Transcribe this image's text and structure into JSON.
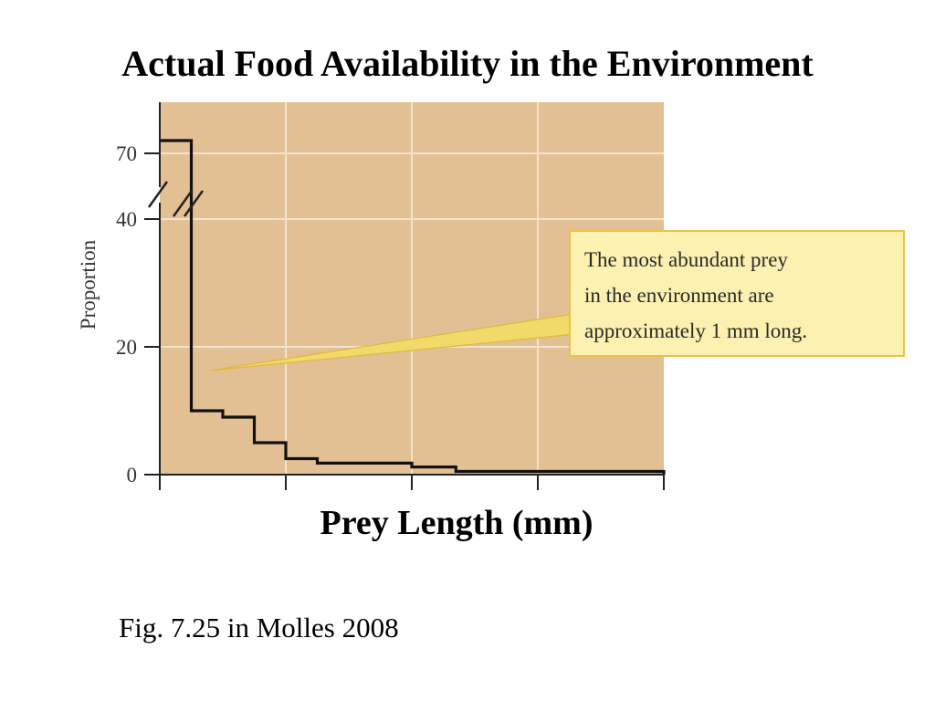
{
  "slide": {
    "title": "Actual Food Availability in the Environment",
    "caption": "Fig. 7.25 in Molles 2008"
  },
  "chart_data": {
    "type": "line",
    "title": "",
    "xlabel": "Prey Length (mm)",
    "ylabel": "Proportion",
    "y_ticks": [
      {
        "value": 0,
        "label": "0"
      },
      {
        "value": 20,
        "label": "20"
      },
      {
        "value": 40,
        "label": "40"
      },
      {
        "value": 70,
        "label": "70"
      }
    ],
    "y_axis_break": "between 40 and 70",
    "xlim": [
      0,
      4
    ],
    "x_ticks_labeled": false,
    "grid": true,
    "series": [
      {
        "style": "step",
        "x": [
          0,
          0.25,
          0.5,
          0.75,
          1.0,
          1.25,
          2.0,
          2.35,
          4.0
        ],
        "y": [
          72,
          10,
          9,
          5,
          2.5,
          1.8,
          1.2,
          0.5,
          0
        ]
      }
    ],
    "annotation": {
      "lines": [
        "The most abundant prey",
        "in the environment are",
        "approximately 1 mm long."
      ]
    },
    "colors": {
      "plot_background": "#e2c094",
      "grid": "#f3e3cc",
      "callout_fill": "#fcf1b0",
      "callout_border": "#e8c24a",
      "pointer": "#f1d96a"
    }
  }
}
